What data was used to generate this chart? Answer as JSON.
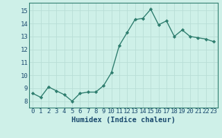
{
  "x": [
    0,
    1,
    2,
    3,
    4,
    5,
    6,
    7,
    8,
    9,
    10,
    11,
    12,
    13,
    14,
    15,
    16,
    17,
    18,
    19,
    20,
    21,
    22,
    23
  ],
  "y": [
    8.6,
    8.3,
    9.1,
    8.8,
    8.5,
    8.0,
    8.6,
    8.7,
    8.7,
    9.2,
    10.2,
    12.3,
    13.3,
    14.3,
    14.4,
    15.1,
    13.9,
    14.2,
    13.0,
    13.5,
    13.0,
    12.9,
    12.8,
    12.6
  ],
  "line_color": "#2e7d6e",
  "marker": "D",
  "marker_size": 2.2,
  "bg_color": "#cef0e8",
  "grid_color": "#b8ddd6",
  "xlabel": "Humidex (Indice chaleur)",
  "ylim": [
    7.5,
    15.6
  ],
  "xlim": [
    -0.5,
    23.5
  ],
  "yticks": [
    8,
    9,
    10,
    11,
    12,
    13,
    14,
    15
  ],
  "xticks": [
    0,
    1,
    2,
    3,
    4,
    5,
    6,
    7,
    8,
    9,
    10,
    11,
    12,
    13,
    14,
    15,
    16,
    17,
    18,
    19,
    20,
    21,
    22,
    23
  ],
  "tick_label_fontsize": 6.5,
  "xlabel_fontsize": 7.5,
  "line_width": 1.0,
  "spine_color": "#2e7d6e",
  "xlabel_color": "#1a4a6e",
  "tick_color": "#1a4a6e"
}
